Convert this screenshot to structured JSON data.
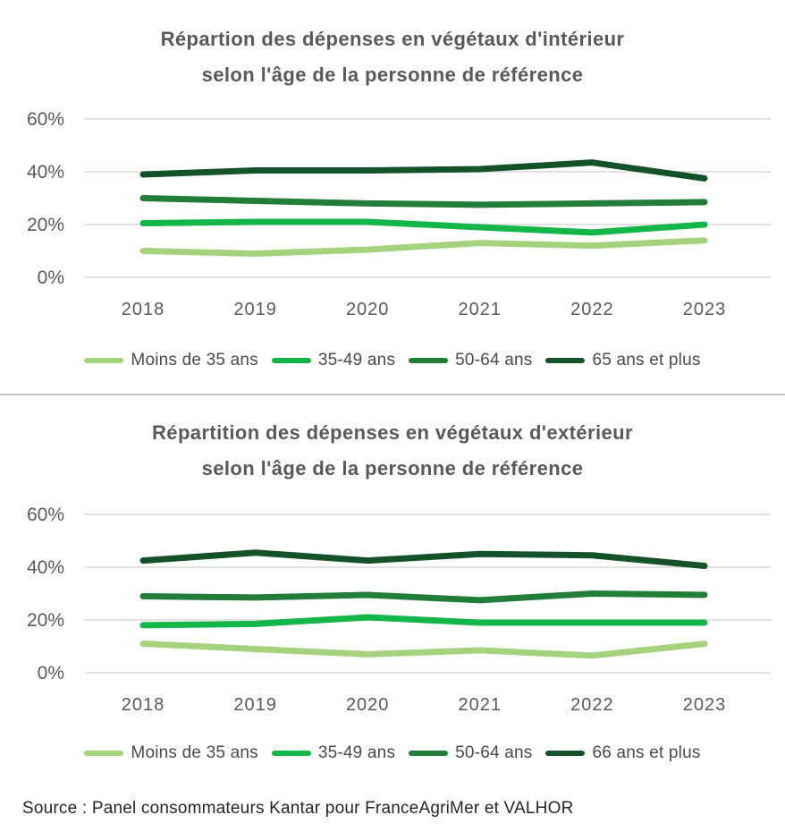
{
  "page": {
    "background": "#ffffff"
  },
  "colors": {
    "title_text": "#595959",
    "axis_labels": "#595959",
    "legend_text": "#4a4a4a",
    "gridline": "#d9d9d9",
    "divider": "#c2c2c2",
    "source_text": "#262626"
  },
  "source_note": "Source : Panel consommateurs Kantar pour FranceAgriMer et VALHOR",
  "chart_data": [
    {
      "type": "line",
      "title": "Répartion des dépenses en végétaux d'intérieur selon l'âge de la personne de référence",
      "title_lines": [
        "Répartion des dépenses en végétaux d'intérieur",
        "selon l'âge de la personne de référence"
      ],
      "categories": [
        "2018",
        "2019",
        "2020",
        "2021",
        "2022",
        "2023"
      ],
      "xlabel": "",
      "ylabel": "",
      "y_ticks": [
        "0%",
        "20%",
        "40%",
        "60%"
      ],
      "ylim": [
        0,
        65
      ],
      "grid": true,
      "legend_position": "bottom",
      "series": [
        {
          "name": "Moins de 35 ans",
          "color": "#a5d37d",
          "values": [
            10,
            9,
            10.5,
            13,
            12,
            14
          ]
        },
        {
          "name": "35-49 ans",
          "color": "#14b64a",
          "values": [
            20.5,
            21,
            21,
            19,
            17,
            20
          ]
        },
        {
          "name": "50-64 ans",
          "color": "#217d38",
          "values": [
            30,
            29,
            28,
            27.5,
            28,
            28.5
          ]
        },
        {
          "name": "65 ans et plus",
          "color": "#14532a",
          "values": [
            39,
            40.5,
            40.5,
            41,
            43.5,
            37.5
          ]
        }
      ]
    },
    {
      "type": "line",
      "title": "Répartition des dépenses en végétaux d'extérieur selon l'âge de la personne de référence",
      "title_lines": [
        "Répartition des dépenses en végétaux d'extérieur",
        "selon l'âge de la personne de référence"
      ],
      "categories": [
        "2018",
        "2019",
        "2020",
        "2021",
        "2022",
        "2023"
      ],
      "xlabel": "",
      "ylabel": "",
      "y_ticks": [
        "0%",
        "20%",
        "40%",
        "60%"
      ],
      "ylim": [
        0,
        65
      ],
      "grid": true,
      "legend_position": "bottom",
      "series": [
        {
          "name": "Moins de 35 ans",
          "color": "#a5d37d",
          "values": [
            11,
            9,
            7,
            8.5,
            6.5,
            11
          ]
        },
        {
          "name": "35-49 ans",
          "color": "#14b64a",
          "values": [
            18,
            18.5,
            21,
            19,
            19,
            19
          ]
        },
        {
          "name": "50-64 ans",
          "color": "#217d38",
          "values": [
            29,
            28.5,
            29.5,
            27.5,
            30,
            29.5
          ]
        },
        {
          "name": "66 ans et plus",
          "color": "#14532a",
          "values": [
            42.5,
            45.5,
            42.5,
            45,
            44.5,
            40.5
          ]
        }
      ]
    }
  ]
}
